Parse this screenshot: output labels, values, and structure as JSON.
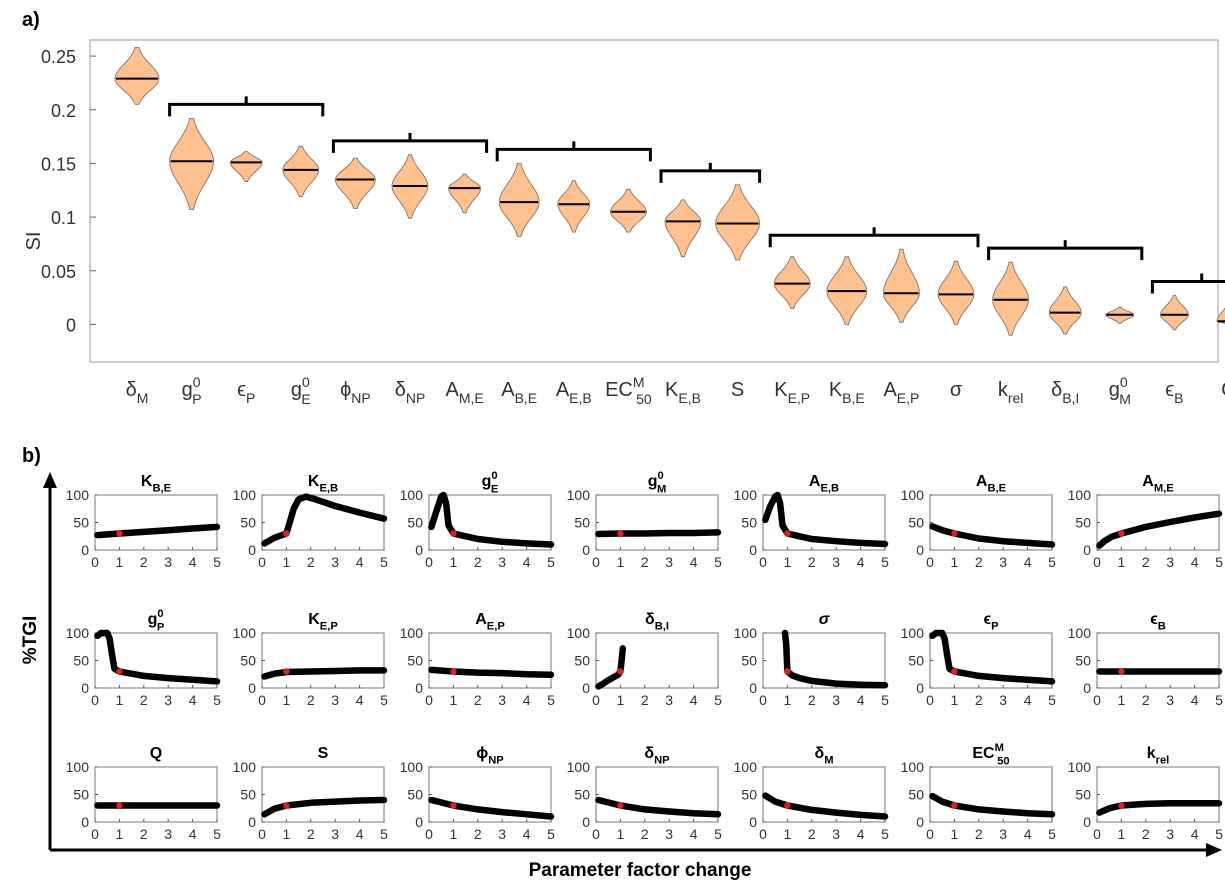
{
  "panels": {
    "a": "a)",
    "b": "b)"
  },
  "chart_data": [
    {
      "type": "violin",
      "ylabel": "SI",
      "ylim": [
        -0.035,
        0.265
      ],
      "yticks": [
        "0",
        "0.05",
        "0.1",
        "0.15",
        "0.2",
        "0.25"
      ],
      "ytick_values": [
        0,
        0.05,
        0.1,
        0.15,
        0.2,
        0.25
      ],
      "grid": false,
      "colors": {
        "fill": "#fdc08e",
        "edge": "#7a6a5a",
        "median": "#000000",
        "bracket": "#000000"
      },
      "categories": [
        {
          "base": "δ",
          "sub": "M",
          "sup": ""
        },
        {
          "base": "g",
          "sub": "P",
          "sup": "0"
        },
        {
          "base": "ϵ",
          "sub": "P",
          "sup": ""
        },
        {
          "base": "g",
          "sub": "E",
          "sup": "0"
        },
        {
          "base": "ϕ",
          "sub": "NP",
          "sup": ""
        },
        {
          "base": "δ",
          "sub": "NP",
          "sup": ""
        },
        {
          "base": "A",
          "sub": "M,E",
          "sup": ""
        },
        {
          "base": "A",
          "sub": "B,E",
          "sup": ""
        },
        {
          "base": "A",
          "sub": "E,B",
          "sup": ""
        },
        {
          "base": "EC",
          "sub": "50",
          "sup": "M"
        },
        {
          "base": "K",
          "sub": "E,B",
          "sup": ""
        },
        {
          "base": "S",
          "sub": "",
          "sup": ""
        },
        {
          "base": "K",
          "sub": "E,P",
          "sup": ""
        },
        {
          "base": "K",
          "sub": "B,E",
          "sup": ""
        },
        {
          "base": "A",
          "sub": "E,P",
          "sup": ""
        },
        {
          "base": "σ",
          "sub": "",
          "sup": ""
        },
        {
          "base": "k",
          "sub": "rel",
          "sup": ""
        },
        {
          "base": "δ",
          "sub": "B,I",
          "sup": ""
        },
        {
          "base": "g",
          "sub": "M",
          "sup": "0"
        },
        {
          "base": "ϵ",
          "sub": "B",
          "sup": ""
        },
        {
          "base": "Q",
          "sub": "",
          "sup": ""
        }
      ],
      "median": [
        0.229,
        0.152,
        0.151,
        0.144,
        0.135,
        0.129,
        0.127,
        0.114,
        0.112,
        0.105,
        0.096,
        0.094,
        0.038,
        0.031,
        0.029,
        0.028,
        0.023,
        0.011,
        0.009,
        0.009,
        0.003
      ],
      "min": [
        0.205,
        0.107,
        0.133,
        0.119,
        0.108,
        0.099,
        0.104,
        0.082,
        0.086,
        0.086,
        0.063,
        0.06,
        0.015,
        0.0,
        0.002,
        0.0,
        -0.01,
        -0.009,
        0.001,
        -0.005,
        0.0
      ],
      "max": [
        0.258,
        0.192,
        0.161,
        0.166,
        0.155,
        0.158,
        0.14,
        0.15,
        0.134,
        0.126,
        0.116,
        0.13,
        0.063,
        0.063,
        0.07,
        0.059,
        0.058,
        0.035,
        0.016,
        0.027,
        0.021
      ],
      "halfwidth": [
        0.55,
        0.55,
        0.4,
        0.45,
        0.5,
        0.45,
        0.4,
        0.5,
        0.4,
        0.45,
        0.45,
        0.55,
        0.45,
        0.5,
        0.45,
        0.45,
        0.45,
        0.4,
        0.35,
        0.35,
        0.3
      ],
      "brackets": [
        [
          1,
          3
        ],
        [
          4,
          6
        ],
        [
          7,
          9
        ],
        [
          10,
          11
        ],
        [
          12,
          15
        ],
        [
          16,
          18
        ],
        [
          19,
          20
        ]
      ]
    },
    {
      "type": "scatter_grid",
      "rows": 3,
      "cols": 7,
      "ylabel": "%TGI",
      "xlabel": "Parameter factor change",
      "xlim": [
        0,
        5
      ],
      "ylim": [
        0,
        100
      ],
      "xticks": [
        "0",
        "1",
        "2",
        "3",
        "4",
        "5"
      ],
      "yticks": [
        "0",
        "50",
        "100"
      ],
      "colors": {
        "points": "#000000",
        "marker": "#e0201e"
      },
      "baseline": {
        "x": 1,
        "y": 30
      },
      "panels": [
        {
          "title": {
            "base": "K",
            "sub": "B,E",
            "sup": ""
          },
          "italic": false,
          "x": [
            0.1,
            1,
            2,
            3,
            4,
            5
          ],
          "y": [
            27,
            30,
            33,
            36,
            39,
            42
          ]
        },
        {
          "title": {
            "base": "K",
            "sub": "E,B",
            "sup": ""
          },
          "italic": false,
          "x": [
            0.1,
            0.5,
            1,
            1.3,
            1.5,
            1.8,
            2.2,
            3,
            4,
            5
          ],
          "y": [
            12,
            22,
            30,
            75,
            92,
            97,
            92,
            80,
            68,
            57
          ]
        },
        {
          "title": {
            "base": "g",
            "sub": "E",
            "sup": "0"
          },
          "italic": false,
          "x": [
            0.1,
            0.3,
            0.5,
            0.6,
            0.7,
            0.8,
            1,
            1.5,
            2,
            3,
            4,
            5
          ],
          "y": [
            42,
            70,
            97,
            100,
            85,
            45,
            30,
            25,
            20,
            15,
            12,
            10
          ]
        },
        {
          "title": {
            "base": "g",
            "sub": "M",
            "sup": "0"
          },
          "italic": false,
          "x": [
            0.1,
            1,
            2,
            3,
            4,
            5
          ],
          "y": [
            29,
            30,
            30,
            31,
            31,
            32
          ]
        },
        {
          "title": {
            "base": "A",
            "sub": "E,B",
            "sup": ""
          },
          "italic": false,
          "x": [
            0.1,
            0.3,
            0.5,
            0.6,
            0.7,
            0.8,
            1,
            1.5,
            2,
            3,
            4,
            5
          ],
          "y": [
            55,
            80,
            97,
            100,
            85,
            45,
            30,
            25,
            20,
            16,
            13,
            11
          ]
        },
        {
          "title": {
            "base": "A",
            "sub": "B,E",
            "sup": ""
          },
          "italic": false,
          "x": [
            0.1,
            0.5,
            1,
            2,
            3,
            4,
            5
          ],
          "y": [
            43,
            36,
            30,
            21,
            16,
            13,
            10
          ]
        },
        {
          "title": {
            "base": "A",
            "sub": "M,E",
            "sup": ""
          },
          "italic": false,
          "x": [
            0.1,
            0.3,
            0.6,
            1,
            2,
            3,
            4,
            5
          ],
          "y": [
            8,
            16,
            24,
            30,
            42,
            51,
            59,
            66
          ]
        },
        {
          "title": {
            "base": "g",
            "sub": "P",
            "sup": "0"
          },
          "italic": false,
          "x": [
            0.1,
            0.25,
            0.5,
            0.6,
            0.7,
            0.8,
            1,
            1.5,
            2,
            3,
            4,
            5
          ],
          "y": [
            95,
            100,
            100,
            90,
            60,
            35,
            30,
            26,
            22,
            18,
            15,
            12
          ]
        },
        {
          "title": {
            "base": "K",
            "sub": "E,P",
            "sup": ""
          },
          "italic": false,
          "x": [
            0.1,
            0.5,
            1,
            2,
            3,
            4,
            5
          ],
          "y": [
            21,
            26,
            29,
            30,
            31,
            32,
            32
          ]
        },
        {
          "title": {
            "base": "A",
            "sub": "E,P",
            "sup": ""
          },
          "italic": false,
          "x": [
            0.1,
            1,
            2,
            3,
            4,
            5
          ],
          "y": [
            33,
            30,
            28,
            27,
            25,
            24
          ]
        },
        {
          "title": {
            "base": "δ",
            "sub": "B,I",
            "sup": ""
          },
          "italic": false,
          "x": [
            0.1,
            0.3,
            0.5,
            0.7,
            0.9,
            1,
            1.05,
            1.1
          ],
          "y": [
            3,
            8,
            14,
            19,
            24,
            30,
            50,
            72
          ]
        },
        {
          "title": {
            "base": "σ",
            "sub": "",
            "sup": ""
          },
          "italic": true,
          "x": [
            0.9,
            0.95,
            1,
            1.2,
            1.5,
            2,
            3,
            4,
            5
          ],
          "y": [
            100,
            80,
            30,
            23,
            18,
            13,
            8,
            6,
            5
          ]
        },
        {
          "title": {
            "base": "ϵ",
            "sub": "P",
            "sup": ""
          },
          "italic": false,
          "x": [
            0.1,
            0.25,
            0.5,
            0.6,
            0.7,
            0.8,
            1,
            1.5,
            2,
            3,
            4,
            5
          ],
          "y": [
            95,
            100,
            100,
            90,
            60,
            35,
            30,
            26,
            22,
            18,
            15,
            12
          ]
        },
        {
          "title": {
            "base": "ϵ",
            "sub": "B",
            "sup": ""
          },
          "italic": false,
          "x": [
            0.1,
            1,
            2,
            3,
            4,
            5
          ],
          "y": [
            30,
            30,
            30,
            30,
            30,
            30
          ]
        },
        {
          "title": {
            "base": "Q",
            "sub": "",
            "sup": ""
          },
          "italic": false,
          "x": [
            0.1,
            1,
            2,
            3,
            4,
            5
          ],
          "y": [
            30,
            30,
            30,
            30,
            30,
            30
          ]
        },
        {
          "title": {
            "base": "S",
            "sub": "",
            "sup": ""
          },
          "italic": false,
          "x": [
            0.1,
            0.5,
            1,
            2,
            3,
            4,
            5
          ],
          "y": [
            14,
            24,
            30,
            35,
            37,
            39,
            40
          ]
        },
        {
          "title": {
            "base": "ϕ",
            "sub": "NP",
            "sup": ""
          },
          "italic": false,
          "x": [
            0.1,
            1,
            2,
            3,
            4,
            5
          ],
          "y": [
            40,
            30,
            23,
            18,
            14,
            10
          ]
        },
        {
          "title": {
            "base": "δ",
            "sub": "NP",
            "sup": ""
          },
          "italic": false,
          "x": [
            0.1,
            1,
            2,
            3,
            4,
            5
          ],
          "y": [
            40,
            30,
            23,
            19,
            16,
            14
          ]
        },
        {
          "title": {
            "base": "δ",
            "sub": "M",
            "sup": ""
          },
          "italic": false,
          "x": [
            0.1,
            0.5,
            1,
            2,
            3,
            4,
            5
          ],
          "y": [
            48,
            37,
            30,
            22,
            17,
            13,
            10
          ]
        },
        {
          "title": {
            "base": "EC",
            "sub": "50",
            "sup": "M"
          },
          "italic": false,
          "x": [
            0.1,
            0.5,
            1,
            2,
            3,
            4,
            5
          ],
          "y": [
            47,
            37,
            30,
            23,
            19,
            16,
            14
          ]
        },
        {
          "title": {
            "base": "k",
            "sub": "rel",
            "sup": ""
          },
          "italic": false,
          "x": [
            0.1,
            0.5,
            1,
            2,
            3,
            4,
            5
          ],
          "y": [
            17,
            25,
            30,
            33,
            34,
            34,
            34
          ]
        }
      ]
    }
  ]
}
